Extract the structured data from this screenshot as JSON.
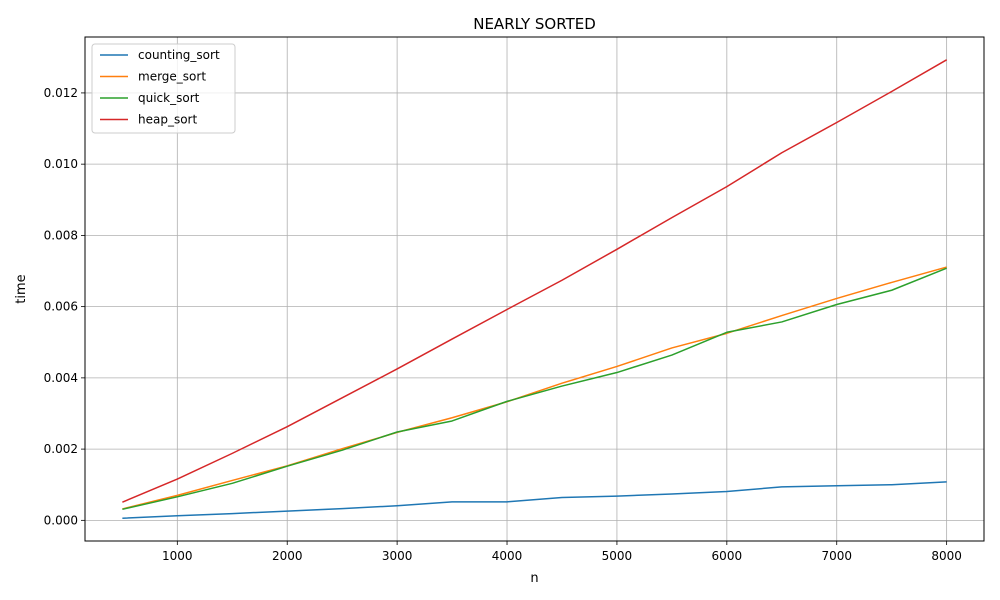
{
  "chart_data": {
    "type": "line",
    "title": "NEARLY SORTED",
    "xlabel": "n",
    "ylabel": "time",
    "xlim": [
      160,
      8340
    ],
    "ylim": [
      -0.00058,
      0.01357
    ],
    "xticks": [
      1000,
      2000,
      3000,
      4000,
      5000,
      6000,
      7000,
      8000
    ],
    "xtick_labels": [
      "1000",
      "2000",
      "3000",
      "4000",
      "5000",
      "6000",
      "7000",
      "8000"
    ],
    "yticks": [
      0.0,
      0.002,
      0.004,
      0.006,
      0.008,
      0.01,
      0.012
    ],
    "ytick_labels": [
      "0.000",
      "0.002",
      "0.004",
      "0.006",
      "0.008",
      "0.010",
      "0.012"
    ],
    "grid": true,
    "legend_position": "top-left",
    "x": [
      500,
      1000,
      1500,
      2000,
      2500,
      3000,
      3500,
      4000,
      4500,
      5000,
      5500,
      6000,
      6500,
      7000,
      7500,
      8000
    ],
    "series": [
      {
        "name": "counting_sort",
        "color": "#1f77b4",
        "values": [
          6e-05,
          0.00013,
          0.00019,
          0.00026,
          0.00033,
          0.00041,
          0.00052,
          0.00052,
          0.00064,
          0.00068,
          0.00074,
          0.00081,
          0.00094,
          0.00097,
          0.001,
          0.00108
        ]
      },
      {
        "name": "merge_sort",
        "color": "#ff7f0e",
        "values": [
          0.00032,
          0.0007,
          0.00112,
          0.00153,
          0.00201,
          0.00247,
          0.00288,
          0.00333,
          0.00385,
          0.00432,
          0.00484,
          0.00525,
          0.00575,
          0.00623,
          0.00668,
          0.00711
        ]
      },
      {
        "name": "quick_sort",
        "color": "#2ca02c",
        "values": [
          0.00031,
          0.00066,
          0.00104,
          0.00152,
          0.00197,
          0.00248,
          0.00279,
          0.00334,
          0.00377,
          0.00415,
          0.00464,
          0.00528,
          0.00557,
          0.00606,
          0.00646,
          0.00708
        ]
      },
      {
        "name": "heap_sort",
        "color": "#d62728",
        "values": [
          0.00051,
          0.00116,
          0.00188,
          0.00263,
          0.00344,
          0.00425,
          0.00509,
          0.00592,
          0.00674,
          0.00761,
          0.0085,
          0.00937,
          0.01032,
          0.01117,
          0.01204,
          0.01293
        ]
      }
    ]
  }
}
